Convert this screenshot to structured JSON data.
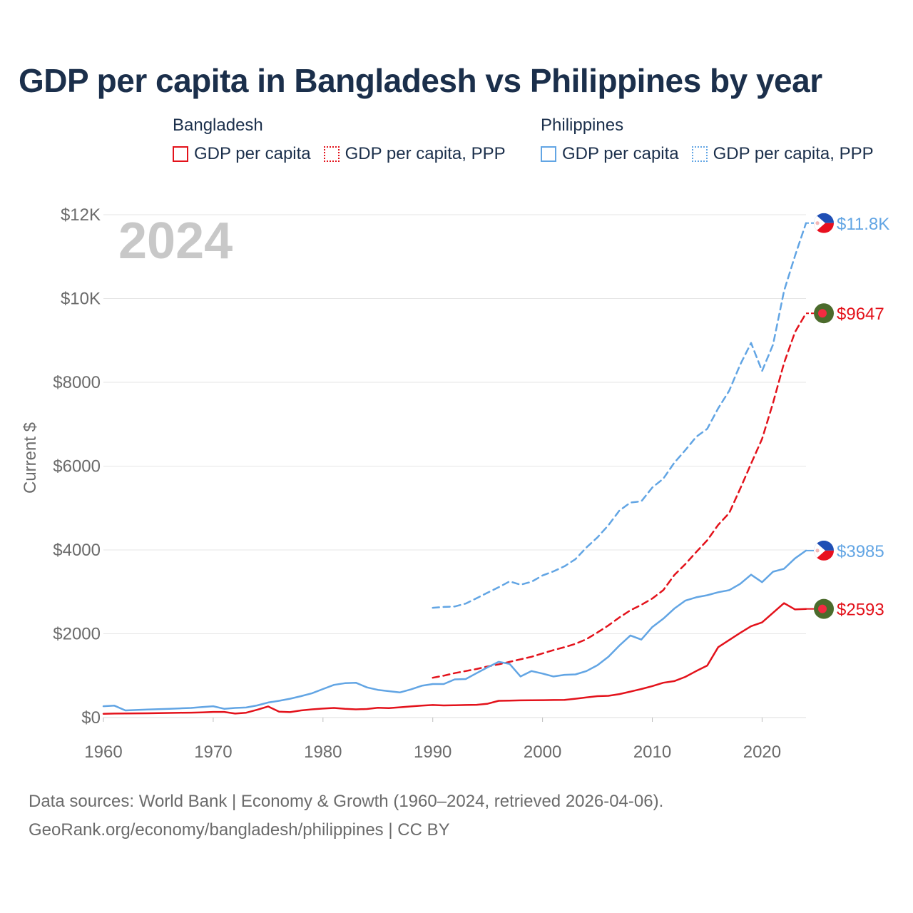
{
  "title": "GDP per capita in Bangladesh vs Philippines by year",
  "legend": {
    "groups": [
      {
        "name": "Bangladesh",
        "items": [
          "GDP per capita",
          "GDP per capita, PPP"
        ]
      },
      {
        "name": "Philippines",
        "items": [
          "GDP per capita",
          "GDP per capita, PPP"
        ]
      }
    ]
  },
  "colors": {
    "bangladesh": "#e3121b",
    "philippines": "#62a5e4",
    "grid": "#e6e6e6",
    "axis_text": "#6b6b6b",
    "year_label": "#c8c8c8"
  },
  "chart_data": {
    "type": "line",
    "year_label": "2024",
    "ylabel": "Current $",
    "xlim": [
      1960,
      2024
    ],
    "ylim": [
      0,
      12000
    ],
    "x_ticks": [
      "1960",
      "1970",
      "1980",
      "1990",
      "2000",
      "2010",
      "2020"
    ],
    "y_ticks": [
      {
        "value": 0,
        "label": "$0"
      },
      {
        "value": 2000,
        "label": "$2000"
      },
      {
        "value": 4000,
        "label": "$4000"
      },
      {
        "value": 6000,
        "label": "$6000"
      },
      {
        "value": 8000,
        "label": "$8000"
      },
      {
        "value": 10000,
        "label": "$10K"
      },
      {
        "value": 12000,
        "label": "$12K"
      }
    ],
    "series": [
      {
        "name": "Bangladesh GDP per capita",
        "country": "bangladesh",
        "style": "solid",
        "end_label": "$2593",
        "start_year": 1960,
        "values": [
          90,
          95,
          98,
          100,
          102,
          105,
          110,
          115,
          118,
          125,
          135,
          135,
          95,
          115,
          185,
          265,
          140,
          130,
          170,
          195,
          215,
          230,
          210,
          195,
          205,
          235,
          225,
          245,
          265,
          285,
          300,
          290,
          295,
          300,
          305,
          330,
          400,
          405,
          410,
          412,
          415,
          418,
          420,
          450,
          480,
          510,
          520,
          560,
          620,
          680,
          750,
          830,
          870,
          970,
          1110,
          1240,
          1680,
          1850,
          2020,
          2180,
          2270,
          2500,
          2730,
          2580,
          2593
        ]
      },
      {
        "name": "Bangladesh GDP per capita, PPP",
        "country": "bangladesh",
        "style": "dashed",
        "end_label": "$9647",
        "start_year": 1990,
        "values": [
          950,
          1000,
          1060,
          1110,
          1160,
          1220,
          1270,
          1330,
          1390,
          1450,
          1530,
          1610,
          1680,
          1760,
          1870,
          2030,
          2200,
          2390,
          2560,
          2690,
          2840,
          3040,
          3400,
          3660,
          3950,
          4230,
          4600,
          4880,
          5460,
          6060,
          6650,
          7510,
          8460,
          9200,
          9647
        ]
      },
      {
        "name": "Philippines GDP per capita",
        "country": "philippines",
        "style": "solid",
        "end_label": "$3985",
        "start_year": 1960,
        "values": [
          270,
          285,
          170,
          180,
          190,
          200,
          210,
          220,
          230,
          250,
          270,
          210,
          230,
          240,
          290,
          360,
          400,
          450,
          510,
          580,
          680,
          780,
          820,
          830,
          720,
          660,
          630,
          600,
          670,
          760,
          800,
          800,
          910,
          920,
          1060,
          1200,
          1330,
          1280,
          980,
          1110,
          1050,
          980,
          1020,
          1030,
          1110,
          1250,
          1450,
          1720,
          1960,
          1860,
          2160,
          2360,
          2600,
          2790,
          2870,
          2920,
          2990,
          3040,
          3190,
          3410,
          3230,
          3480,
          3550,
          3800,
          3985
        ]
      },
      {
        "name": "Philippines GDP per capita, PPP",
        "country": "philippines",
        "style": "dashed",
        "end_label": "$11.8K",
        "start_year": 1990,
        "values": [
          2620,
          2640,
          2650,
          2720,
          2850,
          2980,
          3110,
          3250,
          3170,
          3240,
          3390,
          3490,
          3610,
          3780,
          4060,
          4300,
          4590,
          4940,
          5130,
          5160,
          5490,
          5700,
          6080,
          6380,
          6700,
          6890,
          7380,
          7800,
          8420,
          8940,
          8270,
          8900,
          10180,
          11020,
          11800
        ]
      }
    ]
  },
  "footer": {
    "line1": "Data sources: World Bank | Economy & Growth (1960–2024, retrieved 2026-04-06).",
    "line2": "GeoRank.org/economy/bangladesh/philippines | CC BY"
  }
}
